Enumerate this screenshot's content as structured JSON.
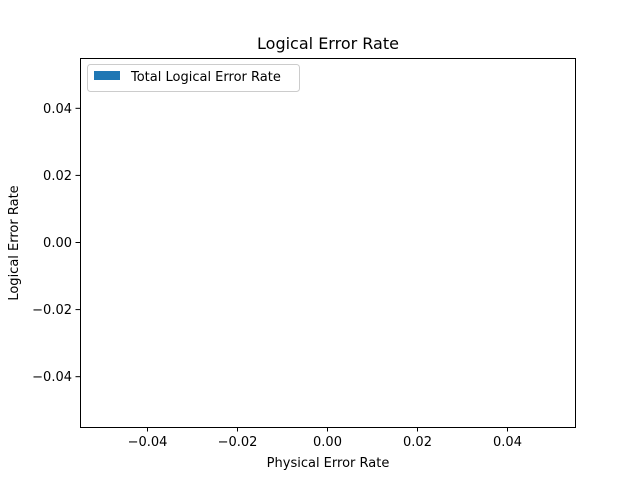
{
  "chart_data": {
    "type": "bar",
    "title": "Logical Error Rate",
    "xlabel": "Physical Error Rate",
    "ylabel": "Logical Error Rate",
    "xlim": [
      -0.055,
      0.055
    ],
    "ylim": [
      -0.055,
      0.055
    ],
    "x_ticks": [
      -0.04,
      -0.02,
      0.0,
      0.02,
      0.04
    ],
    "x_tick_labels": [
      "−0.04",
      "−0.02",
      "0.00",
      "0.02",
      "0.04"
    ],
    "y_ticks": [
      -0.04,
      -0.02,
      0.0,
      0.02,
      0.04
    ],
    "y_tick_labels": [
      "−0.04",
      "−0.02",
      "0.00",
      "0.02",
      "0.04"
    ],
    "grid": false,
    "legend_position": "upper-left",
    "series": [
      {
        "name": "Total Logical Error Rate",
        "color": "#1f77b4",
        "x": [],
        "values": []
      }
    ]
  }
}
